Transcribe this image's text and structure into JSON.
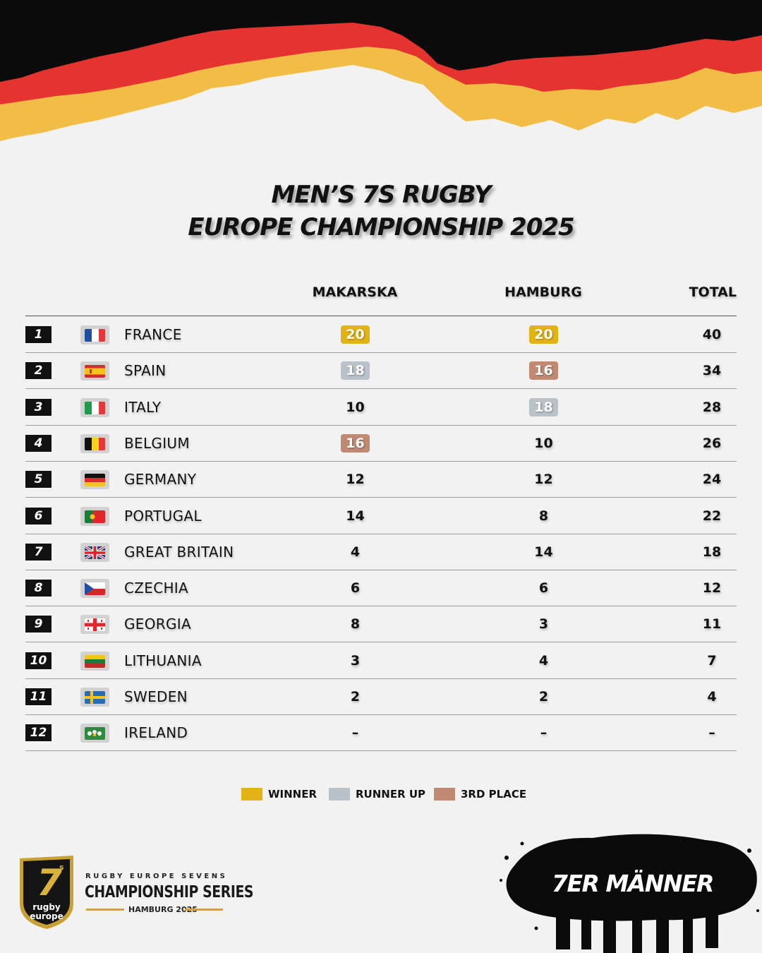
{
  "title": {
    "line1": "MEN’S 7S RUGBY",
    "line2": "EUROPE CHAMPIONSHIP 2025"
  },
  "columns": {
    "makarska": "MAKARSKA",
    "hamburg": "HAMBURG",
    "total": "TOTAL"
  },
  "colors": {
    "winner": "#e2b314",
    "runner_up": "#b9c1c9",
    "third": "#c08a72"
  },
  "rows": [
    {
      "rank": "1",
      "country": "FRANCE",
      "makarska": "20",
      "hamburg": "20",
      "total": "40",
      "makarska_place": "winner",
      "hamburg_place": "winner"
    },
    {
      "rank": "2",
      "country": "SPAIN",
      "makarska": "18",
      "hamburg": "16",
      "total": "34",
      "makarska_place": "runner_up",
      "hamburg_place": "third"
    },
    {
      "rank": "3",
      "country": "ITALY",
      "makarska": "10",
      "hamburg": "18",
      "total": "28",
      "makarska_place": "",
      "hamburg_place": "runner_up"
    },
    {
      "rank": "4",
      "country": "BELGIUM",
      "makarska": "16",
      "hamburg": "10",
      "total": "26",
      "makarska_place": "third",
      "hamburg_place": ""
    },
    {
      "rank": "5",
      "country": "GERMANY",
      "makarska": "12",
      "hamburg": "12",
      "total": "24",
      "makarska_place": "",
      "hamburg_place": ""
    },
    {
      "rank": "6",
      "country": "PORTUGAL",
      "makarska": "14",
      "hamburg": "8",
      "total": "22",
      "makarska_place": "",
      "hamburg_place": ""
    },
    {
      "rank": "7",
      "country": "GREAT BRITAIN",
      "makarska": "4",
      "hamburg": "14",
      "total": "18",
      "makarska_place": "",
      "hamburg_place": ""
    },
    {
      "rank": "8",
      "country": "CZECHIA",
      "makarska": "6",
      "hamburg": "6",
      "total": "12",
      "makarska_place": "",
      "hamburg_place": ""
    },
    {
      "rank": "9",
      "country": "GEORGIA",
      "makarska": "8",
      "hamburg": "3",
      "total": "11",
      "makarska_place": "",
      "hamburg_place": ""
    },
    {
      "rank": "10",
      "country": "LITHUANIA",
      "makarska": "3",
      "hamburg": "4",
      "total": "7",
      "makarska_place": "",
      "hamburg_place": ""
    },
    {
      "rank": "11",
      "country": "SWEDEN",
      "makarska": "2",
      "hamburg": "2",
      "total": "4",
      "makarska_place": "",
      "hamburg_place": ""
    },
    {
      "rank": "12",
      "country": "IRELAND",
      "makarska": "–",
      "hamburg": "–",
      "total": "–",
      "makarska_place": "",
      "hamburg_place": ""
    }
  ],
  "flags": [
    "flag-france-icon",
    "flag-spain-icon",
    "flag-italy-icon",
    "flag-belgium-icon",
    "flag-germany-icon",
    "flag-portugal-icon",
    "flag-great-britain-icon",
    "flag-czechia-icon",
    "flag-georgia-icon",
    "flag-lithuania-icon",
    "flag-sweden-icon",
    "flag-ireland-icon"
  ],
  "legend": {
    "winner": "WINNER",
    "runner_up": "RUNNER UP",
    "third": "3RD PLACE"
  },
  "footer": {
    "logo_number": "7",
    "logo_s": "s",
    "logo_text1": "rugby",
    "logo_text2": "europe",
    "series_small": "RUGBY EUROPE SEVENS",
    "series_big": "CHAMPIONSHIP SERIES",
    "series_sub": "HAMBURG 2025",
    "badge": "7ER MÄNNER"
  }
}
